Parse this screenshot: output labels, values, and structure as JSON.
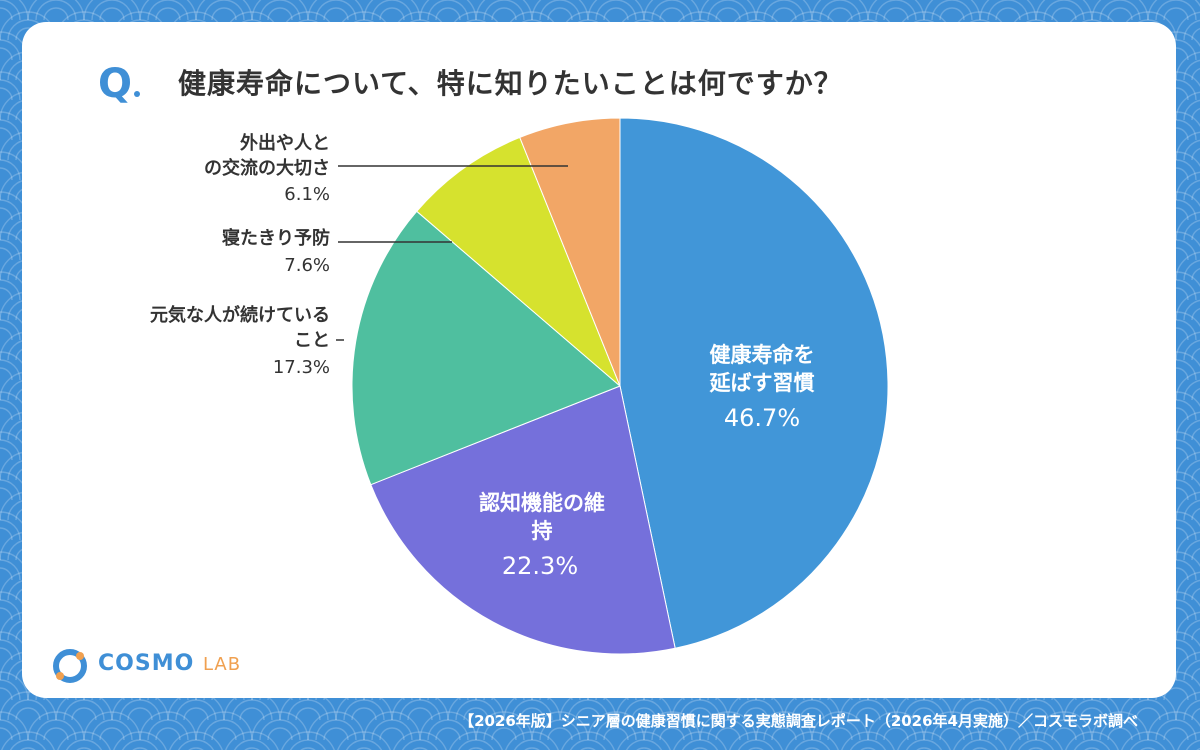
{
  "question": {
    "marker": "Q",
    "text": "健康寿命について、特に知りたいことは何ですか？"
  },
  "chart_data": {
    "type": "pie",
    "slices": [
      {
        "label": "健康寿命を延ばす習慣",
        "value": 46.7,
        "value_label": "46.7%",
        "color": "#4196d8"
      },
      {
        "label": "認知機能の維持",
        "value": 22.3,
        "value_label": "22.3%",
        "color": "#7570db"
      },
      {
        "label": "元気な人が続けていること",
        "value": 17.3,
        "value_label": "17.3%",
        "color": "#4fbf9f"
      },
      {
        "label": "寝たきり予防",
        "value": 7.6,
        "value_label": "7.6%",
        "color": "#d6e22e"
      },
      {
        "label": "外出や人との交流の大切さ",
        "value": 6.1,
        "value_label": "6.1%",
        "color": "#f2a666"
      }
    ],
    "start": "top",
    "direction": "clockwise"
  },
  "labels": {
    "slice0": {
      "line1": "健康寿命を",
      "line2": "延ばす習慣",
      "pct": "46.7%"
    },
    "slice1": {
      "line1": "認知機能の維",
      "line2": "持",
      "pct": "22.3%"
    },
    "slice2": {
      "line1": "元気な人が続けている",
      "line2": "こと",
      "pct": "17.3%"
    },
    "slice3": {
      "line1": "寝たきり予防",
      "pct": "7.6%"
    },
    "slice4": {
      "line1": "外出や人と",
      "line2": "の交流の大切さ",
      "pct": "6.1%"
    }
  },
  "footer": {
    "source": "【2026年版】シニア層の健康習慣に関する実態調査レポート（2026年4月実施）／コスモラボ調べ"
  },
  "logo": {
    "text_main": "COSMO",
    "text_sub": "LAB",
    "colors": {
      "primary": "#3f8fd6",
      "accent": "#f0a050"
    }
  },
  "theme": {
    "background": "#3f8fd6",
    "card": "#ffffff",
    "text": "#333333"
  }
}
